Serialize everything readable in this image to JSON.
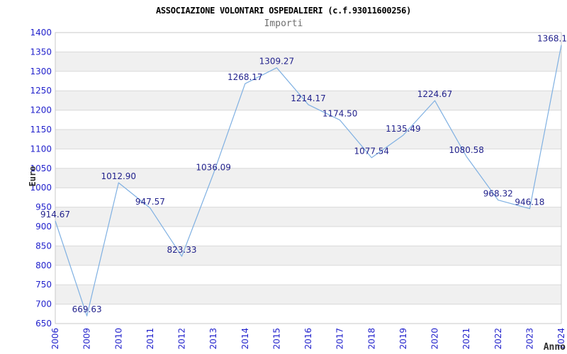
{
  "header": {
    "title": "ASSOCIAZIONE VOLONTARI OSPEDALIERI (c.f.93011600256)",
    "subtitle": "Importi"
  },
  "chart_data": {
    "type": "line",
    "title": "ASSOCIAZIONE VOLONTARI OSPEDALIERI (c.f.93011600256)",
    "subtitle": "Importi",
    "xlabel": "Anno",
    "ylabel": "Euro",
    "categories": [
      "2006",
      "2009",
      "2010",
      "2011",
      "2012",
      "2013",
      "2014",
      "2015",
      "2016",
      "2017",
      "2018",
      "2019",
      "2020",
      "2021",
      "2022",
      "2023",
      "2024"
    ],
    "values": [
      914.67,
      669.63,
      1012.9,
      947.57,
      823.33,
      1036.09,
      1268.17,
      1309.27,
      1214.17,
      1174.5,
      1077.54,
      1135.49,
      1224.67,
      1080.58,
      968.32,
      946.18,
      1368.1
    ],
    "point_labels": [
      "914.67",
      "669.63",
      "1012.90",
      "947.57",
      "823.33",
      "1036.09",
      "1268.17",
      "1309.27",
      "1214.17",
      "1174.50",
      "1077.54",
      "1135.49",
      "1224.67",
      "1080.58",
      "968.32",
      "946.18",
      "1368.1"
    ],
    "ylim": [
      650,
      1400
    ],
    "ytick_step": 50,
    "grid": true,
    "legend": false,
    "colors": {
      "line": "#7FB0E2",
      "tick_label": "#2222CC",
      "data_label": "#22228C",
      "band": "#F0F0F0",
      "gridline": "#D9D9D9",
      "frame": "#C9C9C9",
      "title": "#000000",
      "subtitle": "#6E6E6E",
      "axis_title": "#2E2E2E",
      "background": "#FFFFFF"
    }
  }
}
